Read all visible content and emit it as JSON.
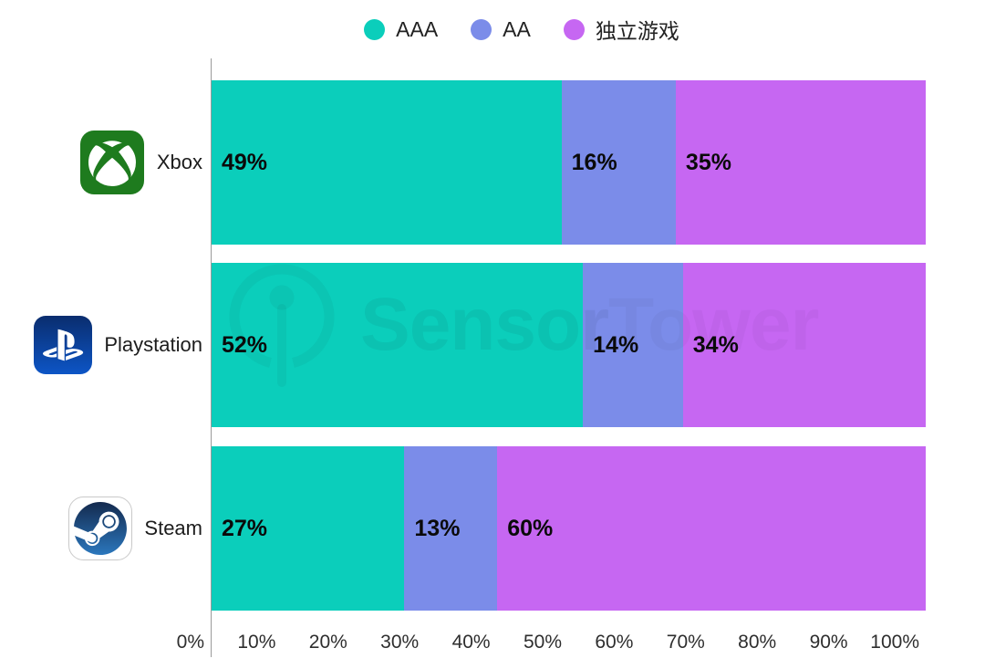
{
  "legend": {
    "items": [
      {
        "key": "aaa",
        "label": "AAA",
        "color": "#0bcebb"
      },
      {
        "key": "aa",
        "label": "AA",
        "color": "#7b8ce9"
      },
      {
        "key": "indie",
        "label": "独立游戏",
        "color": "#c667f2"
      }
    ]
  },
  "watermark": {
    "icon": "sensortower-logo-icon",
    "text_bold": "Sensor",
    "text_light": "Tower"
  },
  "chart_data": {
    "type": "bar",
    "orientation": "horizontal",
    "stacked": true,
    "grid": false,
    "legend_position": "top",
    "categories": [
      "Xbox",
      "Playstation",
      "Steam"
    ],
    "category_keys": [
      "xbox",
      "playstation",
      "steam"
    ],
    "category_icons": [
      "xbox-icon",
      "playstation-icon",
      "steam-icon"
    ],
    "series": [
      {
        "key": "aaa",
        "name": "AAA",
        "color": "#0bcebb",
        "values": [
          49,
          52,
          27
        ]
      },
      {
        "key": "aa",
        "name": "AA",
        "color": "#7b8ce9",
        "values": [
          16,
          14,
          13
        ]
      },
      {
        "key": "indie",
        "name": "独立游戏",
        "color": "#c667f2",
        "values": [
          35,
          34,
          60
        ]
      }
    ],
    "value_labels": [
      [
        "49%",
        "16%",
        "35%"
      ],
      [
        "52%",
        "14%",
        "34%"
      ],
      [
        "27%",
        "13%",
        "60%"
      ]
    ],
    "x_ticks": [
      "0%",
      "10%",
      "20%",
      "30%",
      "40%",
      "50%",
      "60%",
      "70%",
      "80%",
      "90%",
      "100%"
    ],
    "xlim": [
      0,
      100
    ]
  }
}
